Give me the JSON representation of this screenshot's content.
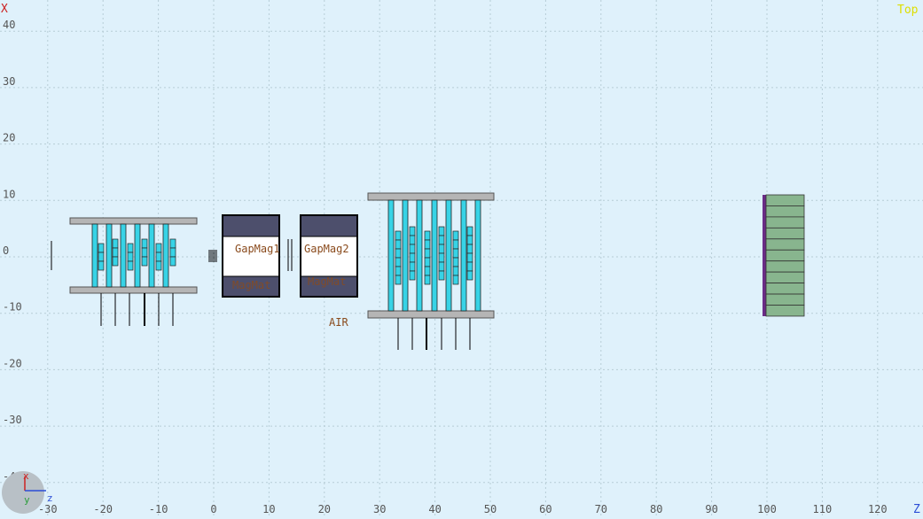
{
  "view": {
    "name": "Top",
    "horizontal_axis": "Z",
    "vertical_axis": "X",
    "gizmo": {
      "x": "x",
      "y": "y",
      "z": "z"
    }
  },
  "axes": {
    "z_ticks": [
      -30,
      -20,
      -10,
      0,
      10,
      20,
      30,
      40,
      50,
      60,
      70,
      80,
      90,
      100,
      110,
      120
    ],
    "x_ticks": [
      40,
      30,
      20,
      10,
      0,
      -10,
      -20,
      -30,
      -40
    ]
  },
  "labels": {
    "gap_mag_1": "GapMag1",
    "gap_mag_2": "GapMag2",
    "mag_mat_1": "MagMat",
    "mag_mat_2": "MagMat",
    "world": "AIR"
  },
  "colors": {
    "background": "#dff1fb",
    "grid": "#b7cdd6",
    "frame_plate": "#b5b5b5",
    "scint_bar": "#37d3e6",
    "magnet_yoke": "#4d4f6c",
    "calorimeter": "#88b58e",
    "calorimeter_edge": "#6a2b86",
    "label": "#8a4b1d",
    "view_label": "#dede00"
  }
}
